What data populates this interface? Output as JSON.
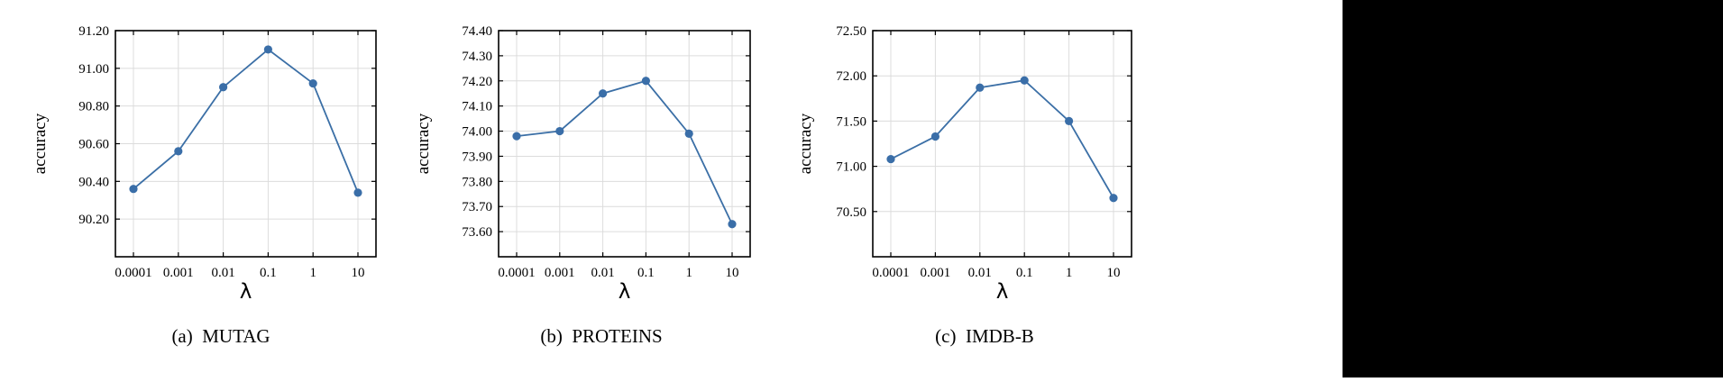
{
  "figure": {
    "colors": {
      "line": "#3b6fa6",
      "point": "#3a6ea8",
      "grid": "#dcdcdc",
      "axis": "#000000",
      "right_band": "#000000"
    }
  },
  "chart_data": [
    {
      "type": "line",
      "caption": "(a)  MUTAG",
      "categories": [
        "0.0001",
        "0.001",
        "0.01",
        "0.1",
        "1",
        "10"
      ],
      "values": [
        90.36,
        90.56,
        90.9,
        91.1,
        90.92,
        90.34
      ],
      "xlabel": "λ",
      "ylabel": "accuracy",
      "yticks": [
        "90.20",
        "90.40",
        "90.60",
        "90.80",
        "91.00",
        "91.20"
      ],
      "ylim": [
        90.0,
        91.2
      ],
      "grid": true
    },
    {
      "type": "line",
      "caption": "(b)  PROTEINS",
      "categories": [
        "0.0001",
        "0.001",
        "0.01",
        "0.1",
        "1",
        "10"
      ],
      "values": [
        73.98,
        74.0,
        74.15,
        74.2,
        73.99,
        73.63
      ],
      "xlabel": "λ",
      "ylabel": "accuracy",
      "yticks": [
        "73.60",
        "73.70",
        "73.80",
        "73.90",
        "74.00",
        "74.10",
        "74.20",
        "74.30",
        "74.40"
      ],
      "ylim": [
        73.5,
        74.4
      ],
      "grid": true
    },
    {
      "type": "line",
      "caption": "(c)  IMDB-B",
      "categories": [
        "0.0001",
        "0.001",
        "0.01",
        "0.1",
        "1",
        "10"
      ],
      "values": [
        71.08,
        71.33,
        71.87,
        71.95,
        71.5,
        70.65
      ],
      "xlabel": "λ",
      "ylabel": "accuracy",
      "yticks": [
        "70.50",
        "71.00",
        "71.50",
        "72.00",
        "72.50"
      ],
      "ylim": [
        70.0,
        72.5
      ],
      "grid": true
    }
  ]
}
